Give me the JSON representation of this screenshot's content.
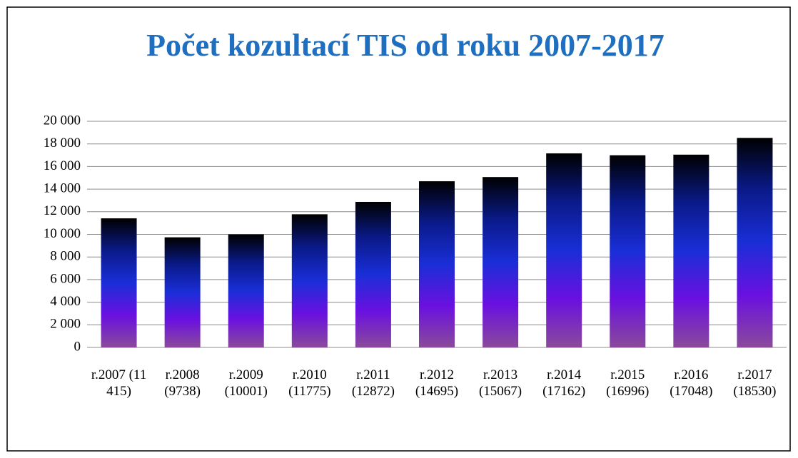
{
  "chart_data": {
    "type": "bar",
    "title": "Počet kozultací TIS od roku 2007-2017",
    "categories": [
      "r.2007 (11 415)",
      "r.2008 (9738)",
      "r.2009 (10001)",
      "r.2010 (11775)",
      "r.2011 (12872)",
      "r.2012 (14695)",
      "r.2013 (15067)",
      "r.2014 (17162)",
      "r.2015 (16996)",
      "r.2016 (17048)",
      "r.2017 (18530)"
    ],
    "values": [
      11415,
      9738,
      10001,
      11775,
      12872,
      14695,
      15067,
      17162,
      16996,
      17048,
      18530
    ],
    "gradient": [
      "#000000",
      "#0a1a8a",
      "#1a2ed8",
      "#6a10e0",
      "#8a4a9a"
    ],
    "ylim": [
      0,
      20000
    ],
    "yticks": [
      0,
      {
        "value": 2000,
        "label": "2 000"
      },
      {
        "value": 4000,
        "label": "4 000"
      },
      {
        "value": 6000,
        "label": "6 000"
      },
      {
        "value": 8000,
        "label": "8 000"
      },
      {
        "value": 10000,
        "label": "10 000"
      },
      {
        "value": 12000,
        "label": "12 000"
      },
      {
        "value": 14000,
        "label": "14 000"
      },
      {
        "value": 16000,
        "label": "16 000"
      },
      {
        "value": 18000,
        "label": "18 000"
      },
      {
        "value": 20000,
        "label": "20 000"
      }
    ],
    "grid": true
  }
}
